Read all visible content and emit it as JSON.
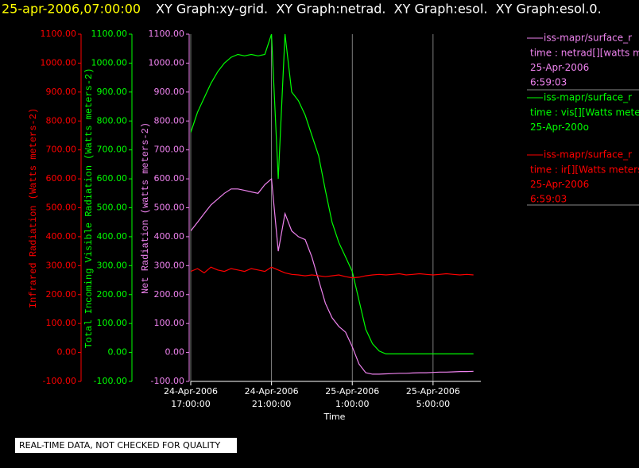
{
  "chart_data": {
    "type": "line",
    "timestamp": "25-apr-2006,07:00:00",
    "title": "XY Graph:xy-grid.  XY Graph:netrad.  XY Graph:esol.  XY Graph:esol.0.",
    "xlabel": "Time",
    "ylabel": "Infrared Radiation (Watts meters-2)",
    "y2label": "Total Incoming Visible Radiation (Watts meters-2)",
    "y3label": "Net Radiation (watts meters-2)",
    "footer": "REAL-TIME DATA, NOT CHECKED FOR QUALITY",
    "grid": true,
    "xlim": [
      "2006-04-24T17:00",
      "2006-04-25T07:22"
    ],
    "xticks": [
      {
        "value": "2006-04-24T17:00",
        "label": [
          "24-Apr-2006",
          "17:00:00"
        ]
      },
      {
        "value": "2006-04-24T21:00",
        "label": [
          "24-Apr-2006",
          "21:00:00"
        ]
      },
      {
        "value": "2006-04-25T01:00",
        "label": [
          "25-Apr-2006",
          "1:00:00"
        ]
      },
      {
        "value": "2006-04-25T05:00",
        "label": [
          "25-Apr-2006",
          "5:00:00"
        ]
      }
    ],
    "ylim": [
      -100,
      1100
    ],
    "yticks": [
      {
        "value": -100,
        "label": "-100.00"
      },
      {
        "value": 0,
        "label": "0.00"
      },
      {
        "value": 100,
        "label": "100.00"
      },
      {
        "value": 200,
        "label": "200.00"
      },
      {
        "value": 300,
        "label": "300.00"
      },
      {
        "value": 400,
        "label": "400.00"
      },
      {
        "value": 500,
        "label": "500.00"
      },
      {
        "value": 600,
        "label": "600.00"
      },
      {
        "value": 700,
        "label": "700.00"
      },
      {
        "value": 800,
        "label": "800.00"
      },
      {
        "value": 900,
        "label": "900.00"
      },
      {
        "value": 1000,
        "label": "1000.00"
      },
      {
        "value": 1100,
        "label": "1100.00"
      }
    ],
    "y2lim": [
      -100,
      1100
    ],
    "y2ticks": [
      {
        "value": -100,
        "label": "-100.00"
      },
      {
        "value": 0,
        "label": "0.00"
      },
      {
        "value": 100,
        "label": "100.00"
      },
      {
        "value": 200,
        "label": "200.00"
      },
      {
        "value": 300,
        "label": "300.00"
      },
      {
        "value": 400,
        "label": "400.00"
      },
      {
        "value": 500,
        "label": "500.00"
      },
      {
        "value": 600,
        "label": "600.00"
      },
      {
        "value": 700,
        "label": "700.00"
      },
      {
        "value": 800,
        "label": "800.00"
      },
      {
        "value": 900,
        "label": "900.00"
      },
      {
        "value": 1000,
        "label": "1000.00"
      },
      {
        "value": 1100,
        "label": "1100.00"
      }
    ],
    "y3lim": [
      -100,
      1100
    ],
    "y3ticks": [
      {
        "value": -100,
        "label": "-100.00"
      },
      {
        "value": 0,
        "label": "0.00"
      },
      {
        "value": 100,
        "label": "100.00"
      },
      {
        "value": 200,
        "label": "200.00"
      },
      {
        "value": 300,
        "label": "300.00"
      },
      {
        "value": 400,
        "label": "400.00"
      },
      {
        "value": 500,
        "label": "500.00"
      },
      {
        "value": 600,
        "label": "600.00"
      },
      {
        "value": 700,
        "label": "700.00"
      },
      {
        "value": 800,
        "label": "800.00"
      },
      {
        "value": 900,
        "label": "900.00"
      },
      {
        "value": 1000,
        "label": "1000.00"
      },
      {
        "value": 1100,
        "label": "1100.00"
      }
    ],
    "x": [
      "2006-04-24T17:00",
      "2006-04-24T17:20",
      "2006-04-24T17:40",
      "2006-04-24T18:00",
      "2006-04-24T18:20",
      "2006-04-24T18:40",
      "2006-04-24T19:00",
      "2006-04-24T19:20",
      "2006-04-24T19:40",
      "2006-04-24T20:00",
      "2006-04-24T20:20",
      "2006-04-24T20:40",
      "2006-04-24T21:00",
      "2006-04-24T21:20",
      "2006-04-24T21:40",
      "2006-04-24T22:00",
      "2006-04-24T22:20",
      "2006-04-24T22:40",
      "2006-04-24T23:00",
      "2006-04-24T23:20",
      "2006-04-24T23:40",
      "2006-04-25T00:00",
      "2006-04-25T00:20",
      "2006-04-25T00:40",
      "2006-04-25T01:00",
      "2006-04-25T01:20",
      "2006-04-25T01:40",
      "2006-04-25T02:00",
      "2006-04-25T02:20",
      "2006-04-25T02:40",
      "2006-04-25T03:00",
      "2006-04-25T03:20",
      "2006-04-25T03:40",
      "2006-04-25T04:00",
      "2006-04-25T04:20",
      "2006-04-25T04:40",
      "2006-04-25T05:00",
      "2006-04-25T05:20",
      "2006-04-25T05:40",
      "2006-04-25T06:00",
      "2006-04-25T06:20",
      "2006-04-25T06:40",
      "2006-04-25T07:00"
    ],
    "series": [
      {
        "name": "iss-mapr/surface_r",
        "color": "#ee82ee",
        "axis": "y3",
        "info": [
          "time : netrad[][watts m",
          "25-Apr-2006",
          "6:59:03"
        ],
        "values": [
          420,
          450,
          480,
          510,
          530,
          550,
          565,
          565,
          560,
          555,
          550,
          580,
          600,
          350,
          480,
          420,
          400,
          390,
          330,
          250,
          170,
          120,
          90,
          70,
          20,
          -40,
          -70,
          -75,
          -75,
          -74,
          -73,
          -72,
          -72,
          -71,
          -70,
          -70,
          -69,
          -68,
          -68,
          -67,
          -66,
          -66,
          -65
        ]
      },
      {
        "name": "iss-mapr/surface_r",
        "color": "#00ff00",
        "axis": "y2",
        "info": [
          "time : vis[][Watts mete",
          "25-Apr-200o"
        ],
        "values": [
          760,
          830,
          880,
          930,
          970,
          1000,
          1020,
          1030,
          1025,
          1030,
          1025,
          1030,
          1100,
          600,
          1100,
          900,
          870,
          820,
          750,
          680,
          560,
          450,
          380,
          330,
          280,
          180,
          80,
          30,
          5,
          -5,
          -5,
          -5,
          -5,
          -5,
          -5,
          -5,
          -5,
          -5,
          -5,
          -5,
          -5,
          -5,
          -5
        ]
      },
      {
        "name": "iss-mapr/surface_r",
        "color": "#ff0000",
        "axis": "y",
        "info": [
          "time : ir[][Watts meters",
          "25-Apr-2006",
          "6:59:03"
        ],
        "values": [
          280,
          290,
          275,
          295,
          285,
          280,
          290,
          285,
          280,
          290,
          285,
          280,
          295,
          285,
          275,
          270,
          268,
          265,
          268,
          265,
          262,
          265,
          268,
          262,
          258,
          260,
          265,
          268,
          270,
          268,
          270,
          272,
          268,
          270,
          272,
          270,
          268,
          270,
          272,
          270,
          268,
          270,
          268
        ]
      }
    ]
  }
}
